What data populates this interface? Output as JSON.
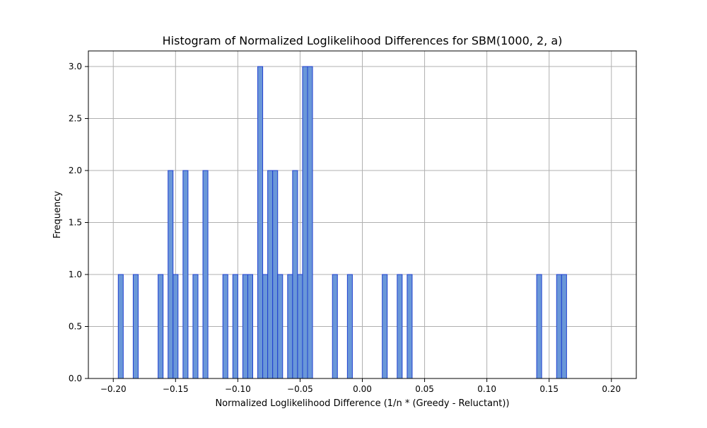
{
  "chart_data": {
    "type": "bar",
    "title": "Histogram of Normalized Loglikelihood Differences for SBM(1000, 2, a)",
    "xlabel": "Normalized Loglikelihood Difference (1/n * (Greedy - Reluctant))",
    "ylabel": "Frequency",
    "xlim": [
      -0.22,
      0.22
    ],
    "ylim": [
      0,
      3.15
    ],
    "grid": true,
    "x_ticks": [
      "−0.20",
      "−0.15",
      "−0.10",
      "−0.05",
      "0.00",
      "0.05",
      "0.10",
      "0.15",
      "0.20"
    ],
    "y_ticks": [
      "0.0",
      "0.5",
      "1.0",
      "1.5",
      "2.0",
      "2.5",
      "3.0"
    ],
    "x_tick_values": [
      -0.2,
      -0.15,
      -0.1,
      -0.05,
      0.0,
      0.05,
      0.1,
      0.15,
      0.2
    ],
    "y_tick_values": [
      0,
      0.5,
      1.0,
      1.5,
      2.0,
      2.5,
      3.0
    ],
    "bin_width": 0.004,
    "bins": [
      {
        "x": -0.196,
        "count": 1
      },
      {
        "x": -0.184,
        "count": 1
      },
      {
        "x": -0.164,
        "count": 1
      },
      {
        "x": -0.156,
        "count": 2
      },
      {
        "x": -0.152,
        "count": 1
      },
      {
        "x": -0.144,
        "count": 2
      },
      {
        "x": -0.136,
        "count": 1
      },
      {
        "x": -0.128,
        "count": 2
      },
      {
        "x": -0.112,
        "count": 1
      },
      {
        "x": -0.104,
        "count": 1
      },
      {
        "x": -0.096,
        "count": 1
      },
      {
        "x": -0.092,
        "count": 1
      },
      {
        "x": -0.084,
        "count": 3
      },
      {
        "x": -0.08,
        "count": 1
      },
      {
        "x": -0.076,
        "count": 2
      },
      {
        "x": -0.072,
        "count": 2
      },
      {
        "x": -0.068,
        "count": 1
      },
      {
        "x": -0.06,
        "count": 1
      },
      {
        "x": -0.056,
        "count": 2
      },
      {
        "x": -0.052,
        "count": 1
      },
      {
        "x": -0.048,
        "count": 3
      },
      {
        "x": -0.044,
        "count": 3
      },
      {
        "x": -0.024,
        "count": 1
      },
      {
        "x": -0.012,
        "count": 1
      },
      {
        "x": 0.016,
        "count": 1
      },
      {
        "x": 0.028,
        "count": 1
      },
      {
        "x": 0.036,
        "count": 1
      },
      {
        "x": 0.14,
        "count": 1
      },
      {
        "x": 0.156,
        "count": 1
      },
      {
        "x": 0.16,
        "count": 1
      }
    ],
    "colors": {
      "bar_fill": "#6a97d8",
      "bar_edge": "#1f3fcf",
      "grid": "#b0b0b0",
      "axis": "#000000"
    }
  }
}
